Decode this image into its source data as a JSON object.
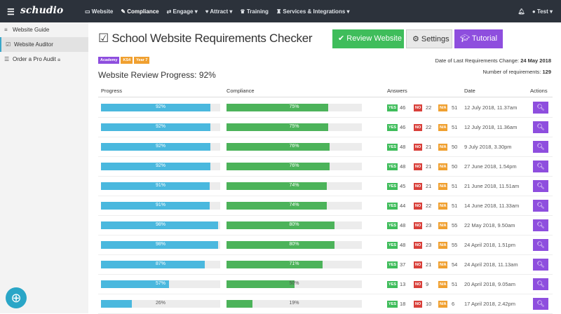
{
  "nav": {
    "logo": "schudio",
    "items": [
      "Website",
      "Compliance",
      "Engage",
      "Attract",
      "Training",
      "Services & Integrations"
    ],
    "icons": [
      "▭",
      "✎",
      "⇄",
      "♥",
      "♛",
      "♜"
    ],
    "carets": [
      false,
      false,
      true,
      true,
      false,
      true
    ],
    "user": "Test"
  },
  "sidebar": [
    {
      "label": "Website Guide",
      "icon": "≡"
    },
    {
      "label": "Website Auditor",
      "icon": "☑"
    },
    {
      "label": "Order a Pro Audit",
      "icon": "☰"
    }
  ],
  "title": "School Website Requirements Checker",
  "buttons": {
    "review": "Review Website",
    "settings": "Settings",
    "tutorial": "Tutorial"
  },
  "tags": [
    {
      "label": "Academy",
      "color": "#8e4ede"
    },
    {
      "label": "KS4",
      "color": "#f0a030"
    },
    {
      "label": "Year 7",
      "color": "#f0a030"
    }
  ],
  "progress_label": "Website Review Progress: 92%",
  "last_change_label": "Date of Last Requirements Change:",
  "last_change": "24 May 2018",
  "num_req_label": "Number of requirements:",
  "num_req": "129",
  "headers": [
    "Progress",
    "Compliance",
    "Answers",
    "Date",
    "Actions"
  ],
  "badges": {
    "yes": "YES",
    "no": "NO",
    "na": "N/A"
  },
  "colors": {
    "progress": "#4ab8de",
    "compliance": "#4cb35a",
    "yes": "#3fbd5b",
    "no": "#d9403a",
    "na": "#f0a030"
  },
  "rows": [
    {
      "progress": 92,
      "compliance": 75,
      "yes": 46,
      "no": 22,
      "na": 51,
      "date": "12 July 2018, 11.37am"
    },
    {
      "progress": 92,
      "compliance": 75,
      "yes": 46,
      "no": 22,
      "na": 51,
      "date": "12 July 2018, 11.36am"
    },
    {
      "progress": 92,
      "compliance": 76,
      "yes": 48,
      "no": 21,
      "na": 50,
      "date": "9 July 2018, 3.30pm"
    },
    {
      "progress": 92,
      "compliance": 76,
      "yes": 48,
      "no": 21,
      "na": 50,
      "date": "27 June 2018, 1.54pm"
    },
    {
      "progress": 91,
      "compliance": 74,
      "yes": 45,
      "no": 21,
      "na": 51,
      "date": "21 June 2018, 11.51am"
    },
    {
      "progress": 91,
      "compliance": 74,
      "yes": 44,
      "no": 22,
      "na": 51,
      "date": "14 June 2018, 11.33am"
    },
    {
      "progress": 98,
      "compliance": 80,
      "yes": 48,
      "no": 23,
      "na": 55,
      "date": "22 May 2018, 9.50am"
    },
    {
      "progress": 98,
      "compliance": 80,
      "yes": 48,
      "no": 23,
      "na": 55,
      "date": "24 April 2018, 1.51pm"
    },
    {
      "progress": 87,
      "compliance": 71,
      "yes": 37,
      "no": 21,
      "na": 54,
      "date": "24 April 2018, 11.13am"
    },
    {
      "progress": 57,
      "compliance": 50,
      "yes": 13,
      "no": 9,
      "na": 51,
      "date": "20 April 2018, 9.05am"
    },
    {
      "progress": 26,
      "compliance": 19,
      "yes": 18,
      "no": 10,
      "na": 6,
      "date": "17 April 2018, 2.42pm"
    }
  ]
}
